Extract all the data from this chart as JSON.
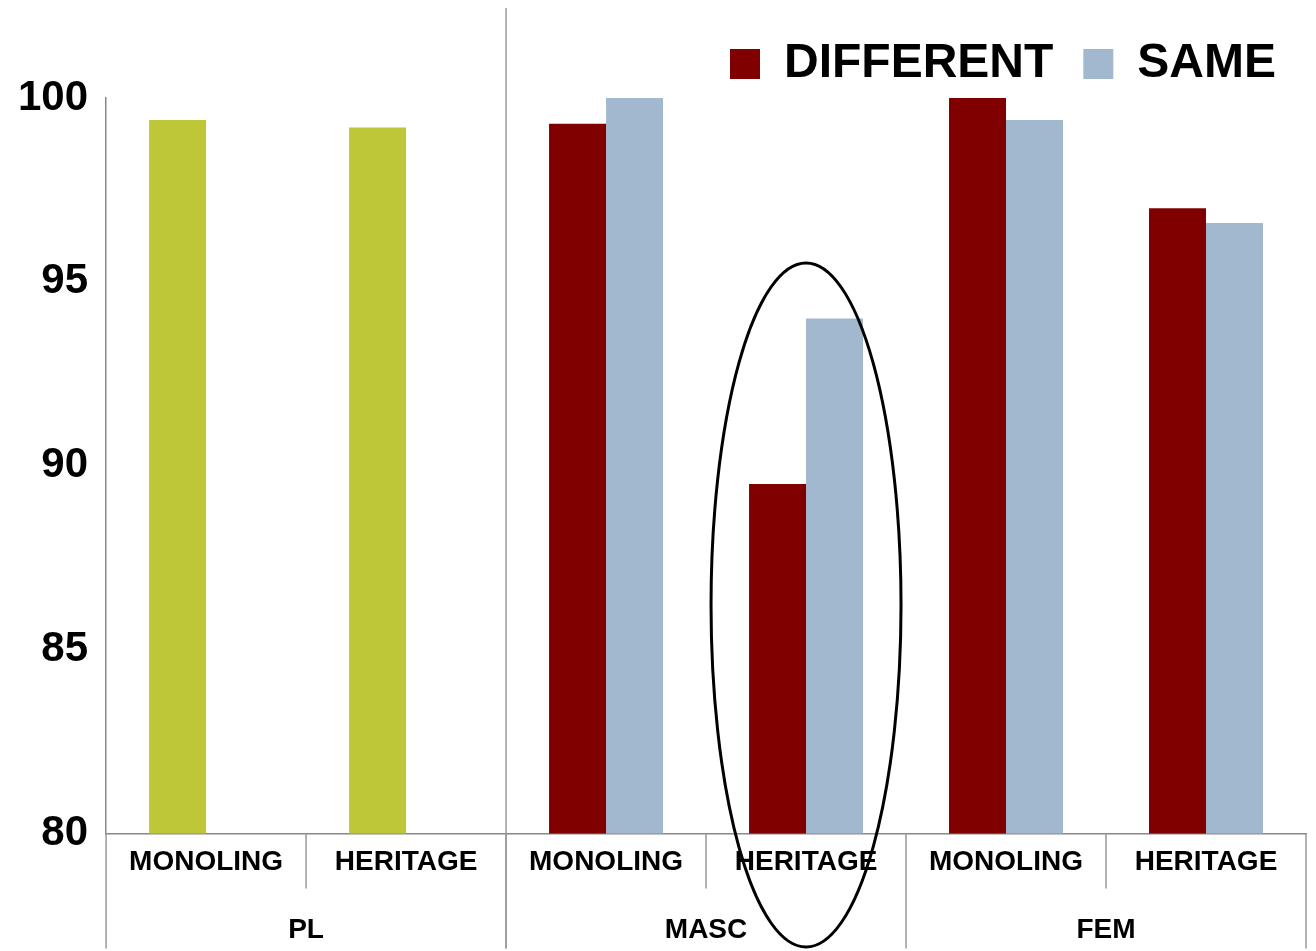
{
  "chart_data": {
    "type": "bar",
    "categories": [
      "MONOLING",
      "HERITAGE",
      "MONOLING",
      "HERITAGE",
      "MONOLING",
      "HERITAGE"
    ],
    "series": [
      {
        "name": "DIFFERENT",
        "color": "#800000",
        "colors": [
          "#bdc738",
          "#bdc738",
          "#800000",
          "#800000",
          "#800000",
          "#800000"
        ],
        "values": [
          99.4,
          99.2,
          99.3,
          89.5,
          100,
          97.0
        ]
      },
      {
        "name": "SAME",
        "color": "#a2b8cf",
        "values": [
          null,
          null,
          100,
          94.0,
          99.4,
          96.6
        ]
      }
    ],
    "annotations": [
      "PL",
      "MASC",
      "FEM"
    ],
    "ylim": [
      80,
      100
    ],
    "yticks": [
      80,
      85,
      90,
      95,
      100
    ],
    "grid": false,
    "legend": "top right"
  }
}
